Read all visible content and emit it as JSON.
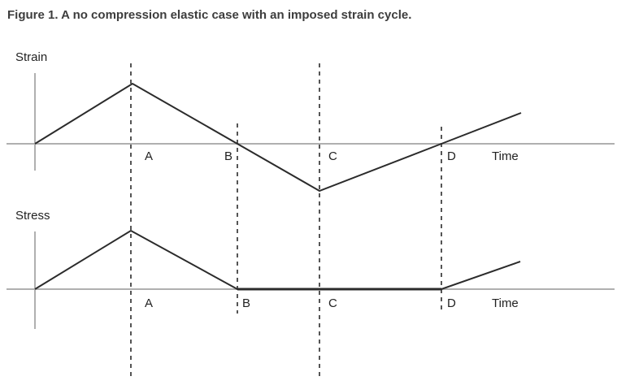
{
  "figure": {
    "title": "Figure 1. A no compression elastic case with an imposed strain cycle."
  },
  "strain_plot": {
    "ylabel": "Strain",
    "xlabel": "Time",
    "markers": [
      "A",
      "B",
      "C",
      "D"
    ]
  },
  "stress_plot": {
    "ylabel": "Stress",
    "xlabel": "Time",
    "markers": [
      "A",
      "B",
      "C",
      "D"
    ]
  },
  "colors": {
    "axis": "#b0b0b0",
    "curve": "#2b2b2b",
    "dashes": "#555555",
    "title": "#3d3d3d"
  }
}
